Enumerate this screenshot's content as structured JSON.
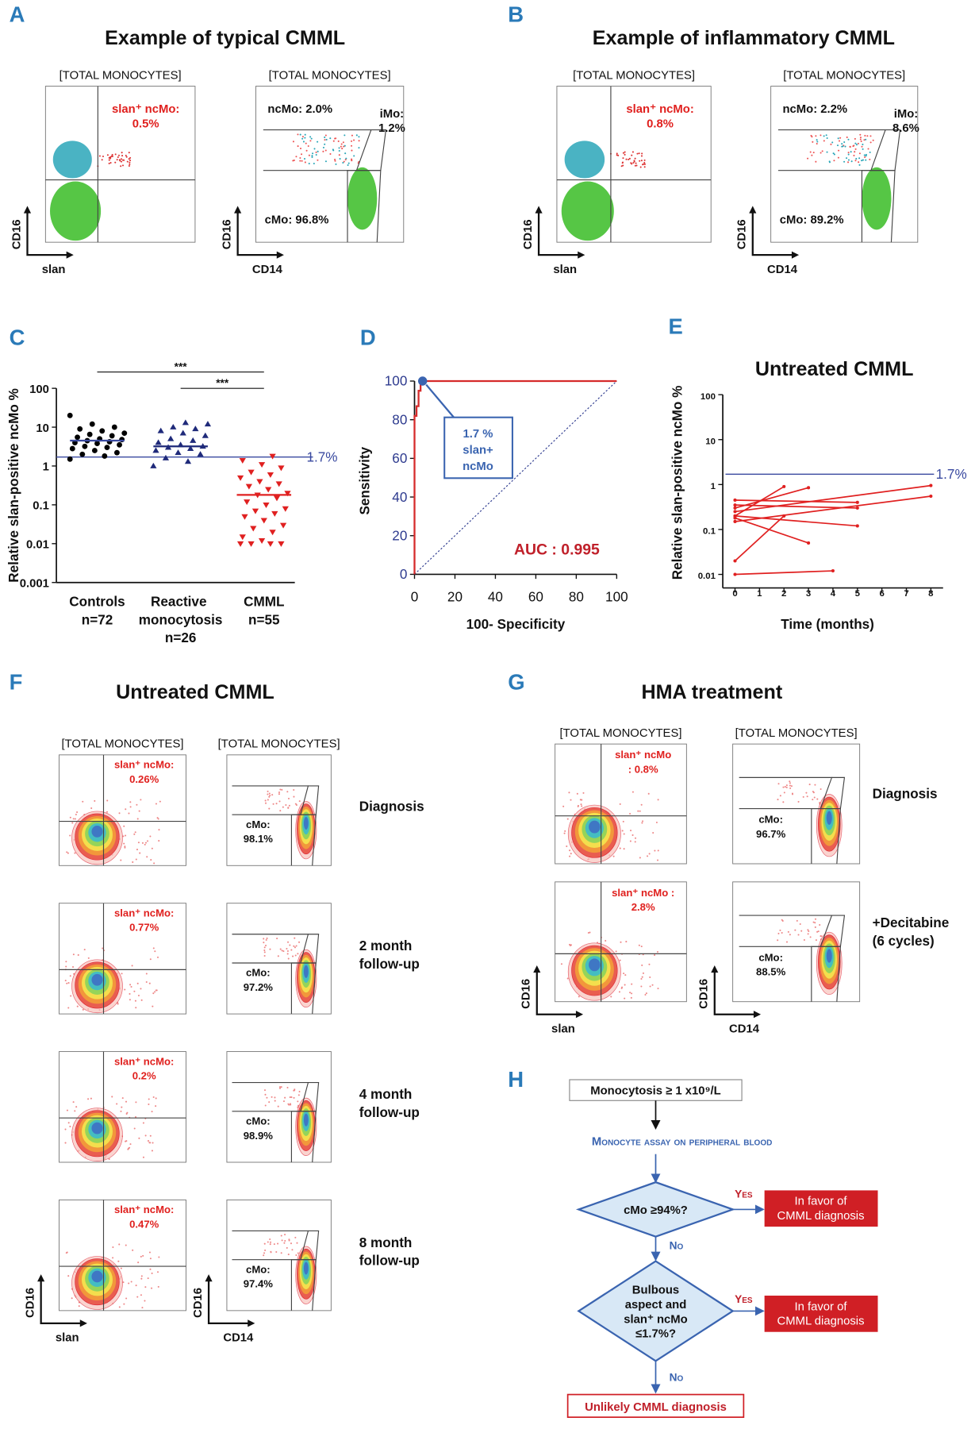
{
  "panels": {
    "A": {
      "letter": "A",
      "title": "Example of typical CMML",
      "plots": [
        {
          "header": "[TOTAL MONOCYTES]",
          "y_label": "CD16",
          "x_label": "slan",
          "gates": {
            "ncMo": [
              "slan⁺ ncMo:",
              "0.5%"
            ]
          }
        },
        {
          "header": "[TOTAL MONOCYTES]",
          "y_label": "CD16",
          "x_label": "CD14",
          "gates": {
            "ncMo": [
              "ncMo: 2.0%"
            ],
            "iMo": [
              "iMo:",
              "1.2%"
            ],
            "cMo": [
              "cMo: 96.8%"
            ]
          }
        }
      ]
    },
    "B": {
      "letter": "B",
      "title": "Example of inflammatory CMML",
      "plots": [
        {
          "header": "[TOTAL MONOCYTES]",
          "y_label": "CD16",
          "x_label": "slan",
          "gates": {
            "ncMo": [
              "slan⁺ ncMo:",
              "0.8%"
            ]
          }
        },
        {
          "header": "[TOTAL MONOCYTES]",
          "y_label": "CD16",
          "x_label": "CD14",
          "gates": {
            "ncMo": [
              "ncMo: 2.2%"
            ],
            "iMo": [
              "iMo:",
              "8.6%"
            ],
            "cMo": [
              "cMo: 89.2%"
            ]
          }
        }
      ]
    },
    "C": {
      "letter": "C"
    },
    "D": {
      "letter": "D"
    },
    "E": {
      "letter": "E"
    },
    "F": {
      "letter": "F",
      "title": "Untreated CMML",
      "rows": [
        {
          "label": [
            "Diagnosis"
          ],
          "plots": [
            {
              "header": "[TOTAL MONOCYTES]",
              "gates": {
                "ncMo": [
                  "slan⁺ ncMo:",
                  "0.26%"
                ]
              }
            },
            {
              "header": "[TOTAL MONOCYTES]",
              "gates": {
                "cMo": [
                  "cMo:",
                  "98.1%"
                ]
              }
            }
          ]
        },
        {
          "label": [
            "2 month",
            "follow-up"
          ],
          "plots": [
            {
              "gates": {
                "ncMo": [
                  "slan⁺ ncMo:",
                  "0.77%"
                ]
              }
            },
            {
              "gates": {
                "cMo": [
                  "cMo:",
                  "97.2%"
                ]
              }
            }
          ]
        },
        {
          "label": [
            "4 month",
            "follow-up"
          ],
          "plots": [
            {
              "gates": {
                "ncMo": [
                  "slan⁺ ncMo:",
                  "0.2%"
                ]
              }
            },
            {
              "gates": {
                "cMo": [
                  "cMo:",
                  "98.9%"
                ]
              }
            }
          ]
        },
        {
          "label": [
            "8 month",
            "follow-up"
          ],
          "plots": [
            {
              "y_label": "CD16",
              "x_label": "slan",
              "gates": {
                "ncMo": [
                  "slan⁺ ncMo:",
                  "0.47%"
                ]
              }
            },
            {
              "y_label": "CD16",
              "x_label": "CD14",
              "gates": {
                "cMo": [
                  "cMo:",
                  "97.4%"
                ]
              }
            }
          ]
        }
      ]
    },
    "G": {
      "letter": "G",
      "title": "HMA treatment",
      "rows": [
        {
          "label": [
            "Diagnosis"
          ],
          "plots": [
            {
              "header": "[TOTAL MONOCYTES]",
              "gates": {
                "ncMo": [
                  "slan⁺ ncMo",
                  ": 0.8%"
                ]
              }
            },
            {
              "header": "[TOTAL MONOCYTES]",
              "gates": {
                "cMo": [
                  "cMo:",
                  "96.7%"
                ]
              }
            }
          ]
        },
        {
          "label": [
            "+Decitabine",
            "(6 cycles)"
          ],
          "plots": [
            {
              "y_label": "CD16",
              "x_label": "slan",
              "gates": {
                "ncMo": [
                  "slan⁺ ncMo :",
                  "2.8%"
                ]
              }
            },
            {
              "y_label": "CD16",
              "x_label": "CD14",
              "gates": {
                "cMo": [
                  "cMo:",
                  "88.5%"
                ]
              }
            }
          ]
        }
      ]
    },
    "H": {
      "letter": "H",
      "start": "Monocytosis ≥ 1 x10⁹/L",
      "assay": "Monocyte assay on peripheral blood",
      "decision1": [
        "cMo ≥94%?"
      ],
      "decision2": [
        "Bulbous",
        "aspect and",
        "slan⁺ ncMo",
        "≤1.7%?"
      ],
      "yes": "Yes",
      "no": "No",
      "outcome": [
        "In favor of",
        "CMML diagnosis"
      ],
      "end": "Unlikely CMML diagnosis"
    }
  },
  "chart_data": [
    {
      "type": "strip",
      "categories": [
        "Controls",
        "Reactive monocytosis",
        "CMML"
      ],
      "group_sizes": [
        "n=72",
        "n=26",
        "n=55"
      ],
      "y_label": "Relative slan-positive ncMo %",
      "log_y": true,
      "ylim": [
        0.001,
        100
      ],
      "yticks": [
        0.001,
        0.01,
        0.1,
        1,
        10,
        100
      ],
      "threshold": {
        "value": 1.7,
        "label": "1.7%"
      },
      "threshold_color": "#3a4aa0",
      "groups": [
        {
          "color": "#000000",
          "marker": "circle",
          "values": [
            1.5,
            1.8,
            2.0,
            2.2,
            2.5,
            2.8,
            3.0,
            3.2,
            3.5,
            3.8,
            4.0,
            4.2,
            4.5,
            4.8,
            5.0,
            5.5,
            6.0,
            6.5,
            7.0,
            8.0,
            9.0,
            10,
            12,
            20
          ],
          "median": 4.5
        },
        {
          "color": "#1f2a7a",
          "marker": "triangle",
          "values": [
            1.0,
            1.3,
            1.6,
            2.0,
            2.2,
            2.5,
            2.8,
            3.0,
            3.2,
            3.5,
            4.0,
            4.5,
            5.0,
            6.0,
            7.0,
            8.0,
            9.0,
            10,
            12,
            13
          ],
          "median": 3.2
        },
        {
          "color": "#e02020",
          "marker": "triangle-down",
          "values": [
            0.01,
            0.01,
            0.01,
            0.01,
            0.012,
            0.015,
            0.02,
            0.025,
            0.03,
            0.04,
            0.05,
            0.06,
            0.07,
            0.08,
            0.1,
            0.12,
            0.15,
            0.18,
            0.2,
            0.25,
            0.3,
            0.35,
            0.4,
            0.5,
            0.6,
            0.7,
            0.9,
            1.1,
            1.4,
            1.8
          ],
          "median": 0.18
        }
      ],
      "significance": [
        {
          "from": 0,
          "to": 2,
          "label": "***"
        },
        {
          "from": 1,
          "to": 2,
          "label": "***"
        }
      ]
    },
    {
      "type": "line",
      "x_label": "100- Specificity",
      "y_label": "Sensitivity",
      "xlim": [
        0,
        100
      ],
      "ylim": [
        0,
        100
      ],
      "xticks": [
        0,
        20,
        40,
        60,
        80,
        100
      ],
      "yticks": [
        0,
        20,
        40,
        60,
        80,
        100
      ],
      "series": [
        {
          "color": "#d62b2b",
          "x": [
            0,
            0,
            1,
            1,
            2,
            2,
            3,
            3,
            100
          ],
          "values": [
            0,
            82,
            82,
            87,
            87,
            95,
            95,
            100,
            100
          ]
        }
      ],
      "highlight": {
        "x": 4,
        "y": 100
      },
      "annotation": [
        "1.7 %",
        "slan+",
        "ncMo"
      ],
      "auc": "AUC : 0.995"
    },
    {
      "type": "line",
      "title": "Untreated CMML",
      "x_label": "Time (months)",
      "y_label": "Relative slan-positive ncMo %",
      "log_y": true,
      "xlim": [
        -0.5,
        8.5
      ],
      "ylim": [
        0.005,
        100
      ],
      "xticks": [
        0,
        1,
        2,
        3,
        4,
        5,
        6,
        7,
        8
      ],
      "yticks": [
        0.01,
        0.1,
        1,
        10,
        100
      ],
      "threshold": {
        "value": 1.7,
        "label": "1.7%"
      },
      "threshold_color": "#3a4aa0",
      "series": [
        {
          "color": "#e02020",
          "x": [
            0,
            2
          ],
          "values": [
            0.2,
            0.9
          ]
        },
        {
          "color": "#e02020",
          "x": [
            0,
            3
          ],
          "values": [
            0.3,
            0.85
          ]
        },
        {
          "color": "#e02020",
          "x": [
            0,
            5
          ],
          "values": [
            0.45,
            0.4
          ]
        },
        {
          "color": "#e02020",
          "x": [
            0,
            8
          ],
          "values": [
            0.25,
            0.95
          ]
        },
        {
          "color": "#e02020",
          "x": [
            0,
            8
          ],
          "values": [
            0.15,
            0.55
          ]
        },
        {
          "color": "#e02020",
          "x": [
            0,
            5
          ],
          "values": [
            0.35,
            0.3
          ]
        },
        {
          "color": "#e02020",
          "x": [
            0,
            3
          ],
          "values": [
            0.18,
            0.05
          ]
        },
        {
          "color": "#e02020",
          "x": [
            0,
            2
          ],
          "values": [
            0.02,
            0.2
          ]
        },
        {
          "color": "#e02020",
          "x": [
            0,
            4
          ],
          "values": [
            0.01,
            0.012
          ]
        },
        {
          "color": "#e02020",
          "x": [
            0,
            5
          ],
          "values": [
            0.2,
            0.12
          ]
        }
      ]
    }
  ]
}
